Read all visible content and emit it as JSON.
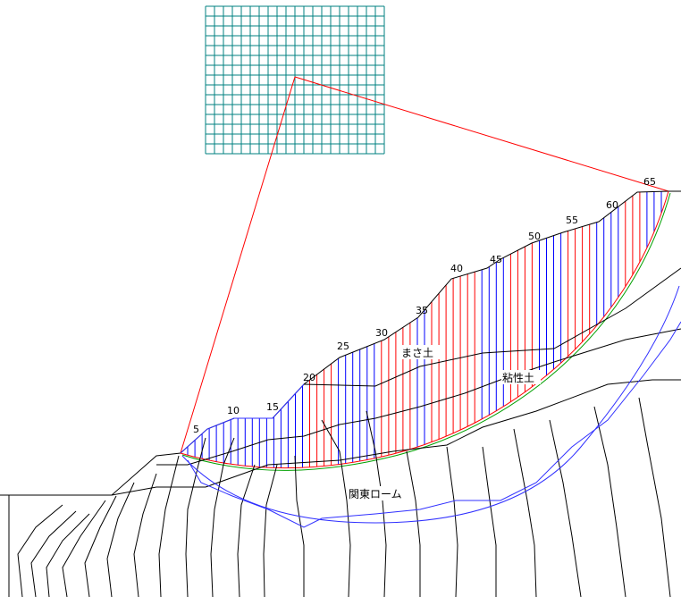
{
  "slice_labels": [
    "5",
    "10",
    "15",
    "20",
    "25",
    "30",
    "35",
    "40",
    "45",
    "50",
    "55",
    "60",
    "65"
  ],
  "soil_layers": {
    "masa": "まさ土",
    "clay": "粘性土",
    "kanto": "関東ローム"
  },
  "colors": {
    "grid": "#008080",
    "radius": "#ff0000",
    "slice_a": "#0000ff",
    "slice_b": "#ff0000",
    "ground": "#000000",
    "slip_green": "#00a000",
    "contour_blue": "#3030ff"
  }
}
